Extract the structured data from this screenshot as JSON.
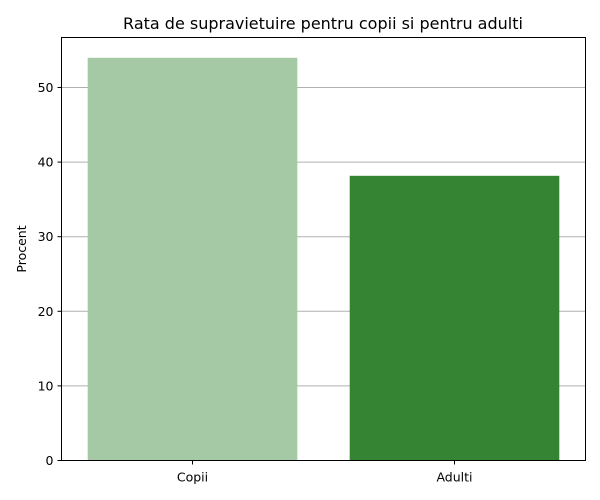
{
  "chart_data": {
    "type": "bar",
    "title": "Rata de supravietuire pentru copii si pentru adulti",
    "xlabel": "",
    "ylabel": "Procent",
    "categories": [
      "Copii",
      "Adulti"
    ],
    "values": [
      53.98,
      38.16
    ],
    "colors": [
      "#a5c9a5",
      "#348434"
    ],
    "ylim": [
      0,
      56.7
    ],
    "yticks": [
      0,
      10,
      20,
      30,
      40,
      50
    ],
    "grid": "horizontal",
    "grid_color": "#b0b0b0",
    "legend": "none"
  }
}
